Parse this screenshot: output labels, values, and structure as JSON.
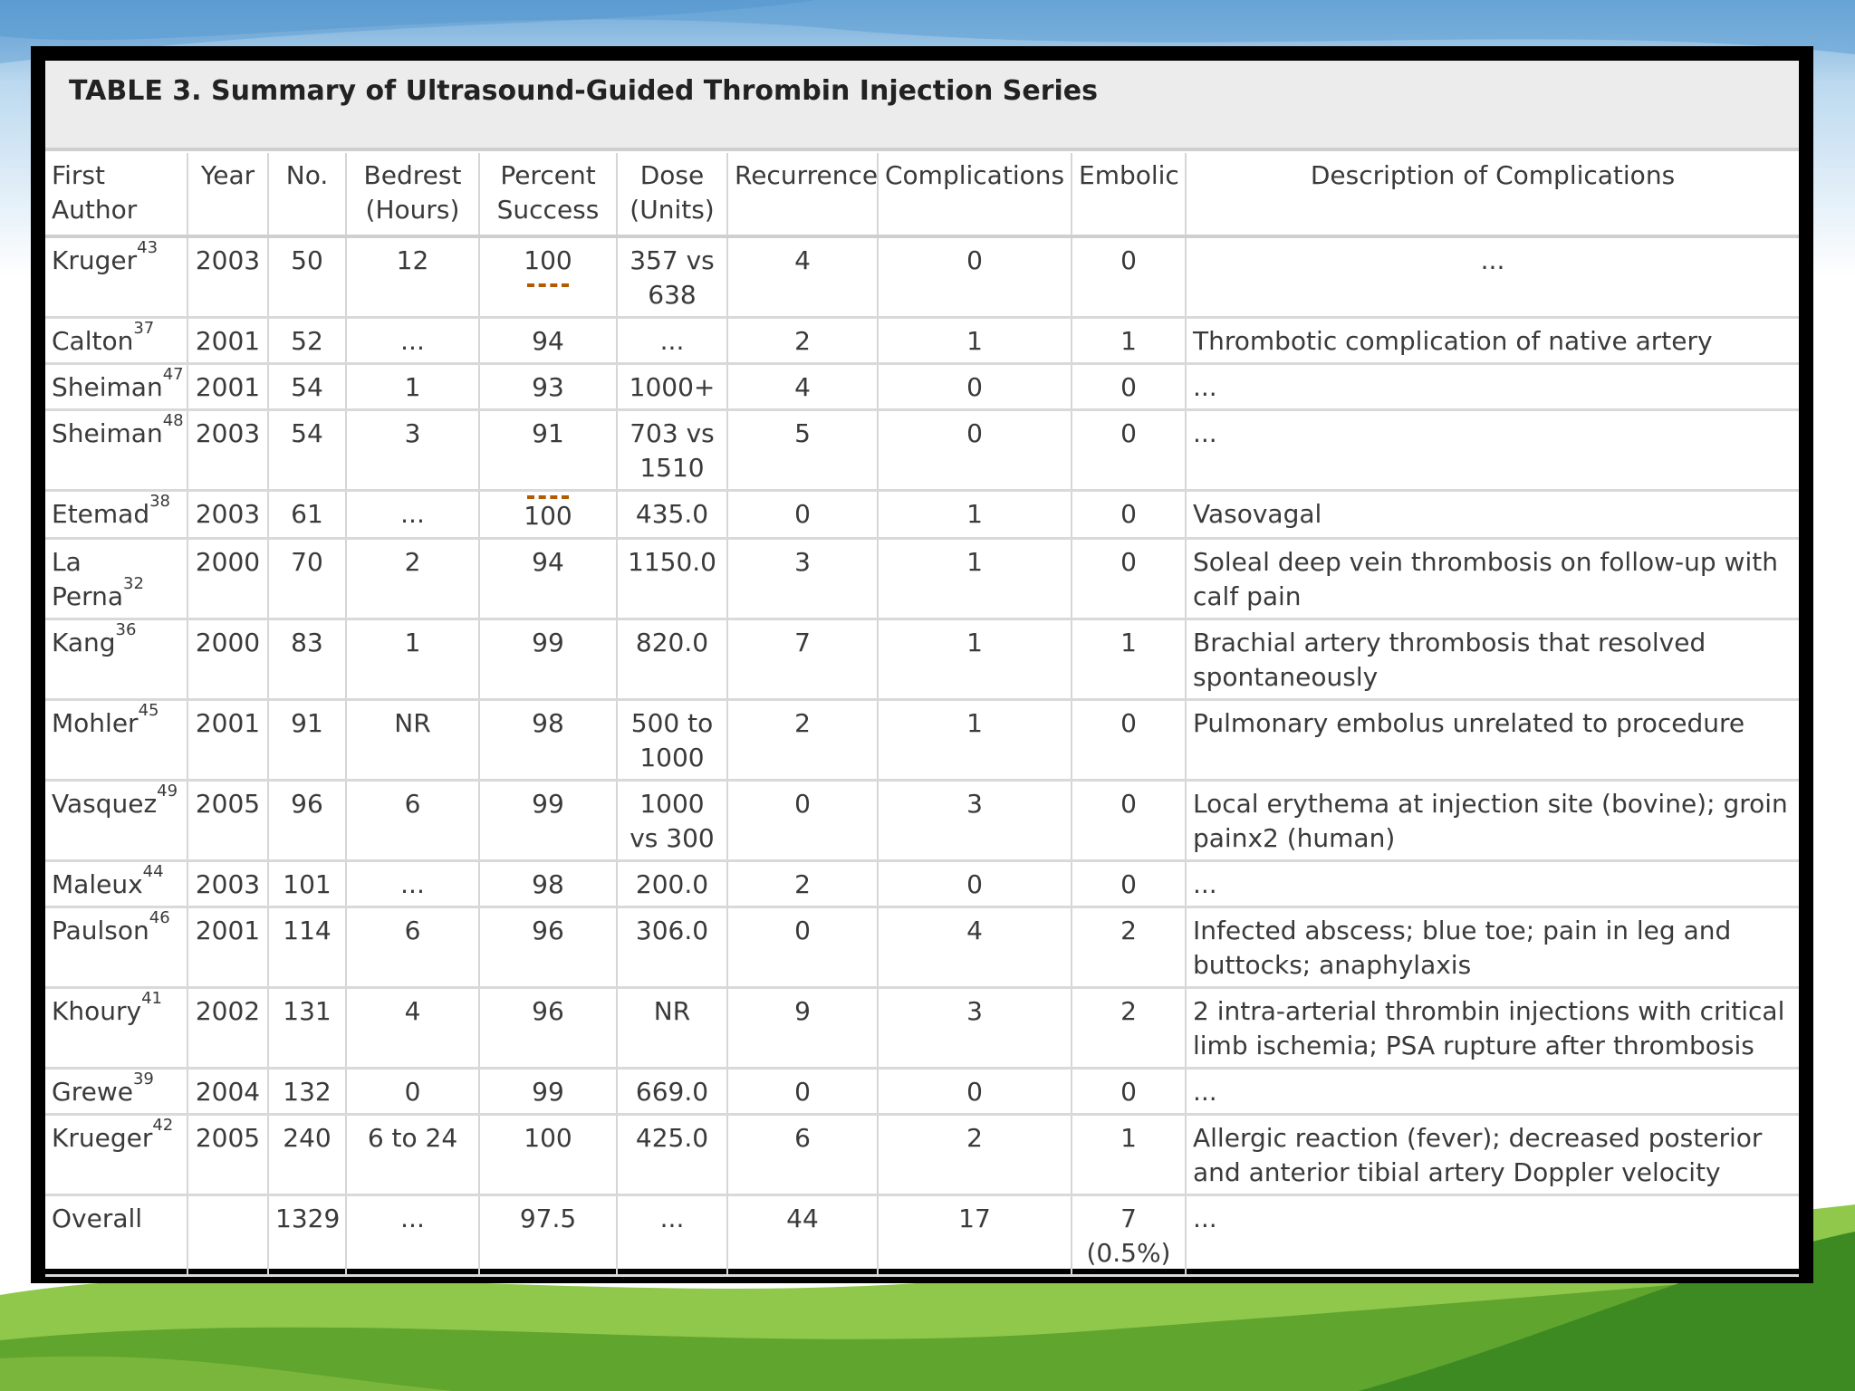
{
  "title": "TABLE 3. Summary of Ultrasound-Guided Thrombin Injection Series",
  "headers": {
    "first_author_1": "First",
    "first_author_2": "Author",
    "year": "Year",
    "no": "No.",
    "bedrest_1": "Bedrest",
    "bedrest_2": "(Hours)",
    "percent_1": "Percent",
    "percent_2": "Success",
    "dose_1": "Dose",
    "dose_2": "(Units)",
    "recurrence": "Recurrence",
    "complications": "Complications",
    "embolic": "Embolic",
    "description": "Description of Complications"
  },
  "rows": [
    {
      "author": "Kruger",
      "ref": "43",
      "year": "2003",
      "no": "50",
      "bedrest": "12",
      "percent": "100",
      "dose": "357 vs 638",
      "recurrence": "4",
      "complications": "0",
      "embolic": "0",
      "description": "..."
    },
    {
      "author": "Calton",
      "ref": "37",
      "year": "2001",
      "no": "52",
      "bedrest": "...",
      "percent": "94",
      "dose": "...",
      "recurrence": "2",
      "complications": "1",
      "embolic": "1",
      "description": "Thrombotic complication of native artery"
    },
    {
      "author": "Sheiman",
      "ref": "47",
      "year": "2001",
      "no": "54",
      "bedrest": "1",
      "percent": "93",
      "dose": "1000+",
      "recurrence": "4",
      "complications": "0",
      "embolic": "0",
      "description": "..."
    },
    {
      "author": "Sheiman",
      "ref": "48",
      "year": "2003",
      "no": "54",
      "bedrest": "3",
      "percent": "91",
      "dose": "703 vs 1510",
      "recurrence": "5",
      "complications": "0",
      "embolic": "0",
      "description": "..."
    },
    {
      "author": "Etemad",
      "ref": "38",
      "year": "2003",
      "no": "61",
      "bedrest": "...",
      "percent": "100",
      "dose": "435.0",
      "recurrence": "0",
      "complications": "1",
      "embolic": "0",
      "description": "Vasovagal"
    },
    {
      "author": "La Perna",
      "ref": "32",
      "year": "2000",
      "no": "70",
      "bedrest": "2",
      "percent": "94",
      "dose": "1150.0",
      "recurrence": "3",
      "complications": "1",
      "embolic": "0",
      "description": "Soleal deep vein thrombosis on follow-up with calf pain"
    },
    {
      "author": "Kang",
      "ref": "36",
      "year": "2000",
      "no": "83",
      "bedrest": "1",
      "percent": "99",
      "dose": "820.0",
      "recurrence": "7",
      "complications": "1",
      "embolic": "1",
      "description": "Brachial artery thrombosis that resolved spontaneously"
    },
    {
      "author": "Mohler",
      "ref": "45",
      "year": "2001",
      "no": "91",
      "bedrest": "NR",
      "percent": "98",
      "dose": "500 to 1000",
      "recurrence": "2",
      "complications": "1",
      "embolic": "0",
      "description": "Pulmonary embolus unrelated to procedure"
    },
    {
      "author": "Vasquez",
      "ref": "49",
      "year": "2005",
      "no": "96",
      "bedrest": "6",
      "percent": "99",
      "dose": "1000 vs 300",
      "recurrence": "0",
      "complications": "3",
      "embolic": "0",
      "description": "Local erythema at injection site (bovine); groin painx2 (human)"
    },
    {
      "author": "Maleux",
      "ref": "44",
      "year": "2003",
      "no": "101",
      "bedrest": "...",
      "percent": "98",
      "dose": "200.0",
      "recurrence": "2",
      "complications": "0",
      "embolic": "0",
      "description": "..."
    },
    {
      "author": "Paulson",
      "ref": "46",
      "year": "2001",
      "no": "114",
      "bedrest": "6",
      "percent": "96",
      "dose": "306.0",
      "recurrence": "0",
      "complications": "4",
      "embolic": "2",
      "description": "Infected abscess; blue toe; pain in leg and buttocks; anaphylaxis"
    },
    {
      "author": "Khoury",
      "ref": "41",
      "year": "2002",
      "no": "131",
      "bedrest": "4",
      "percent": "96",
      "dose": "NR",
      "recurrence": "9",
      "complications": "3",
      "embolic": "2",
      "description": "2 intra-arterial thrombin injections with critical limb ischemia; PSA rupture after thrombosis"
    },
    {
      "author": "Grewe",
      "ref": "39",
      "year": "2004",
      "no": "132",
      "bedrest": "0",
      "percent": "99",
      "dose": "669.0",
      "recurrence": "0",
      "complications": "0",
      "embolic": "0",
      "description": "..."
    },
    {
      "author": "Krueger",
      "ref": "42",
      "year": "2005",
      "no": "240",
      "bedrest": "6 to 24",
      "percent": "100",
      "dose": "425.0",
      "recurrence": "6",
      "complications": "2",
      "embolic": "1",
      "description": "Allergic reaction (fever); decreased posterior and anterior tibial artery Doppler velocity"
    }
  ],
  "overall": {
    "author": "Overall",
    "year": "",
    "no": "1329",
    "bedrest": "...",
    "percent": "97.5",
    "dose": "...",
    "recurrence": "44",
    "complications": "17",
    "embolic": "7 (0.5%)",
    "description": "..."
  },
  "colors": {
    "accent_dash": "#b35900",
    "title_bg": "#ececec",
    "frame": "#000000"
  }
}
